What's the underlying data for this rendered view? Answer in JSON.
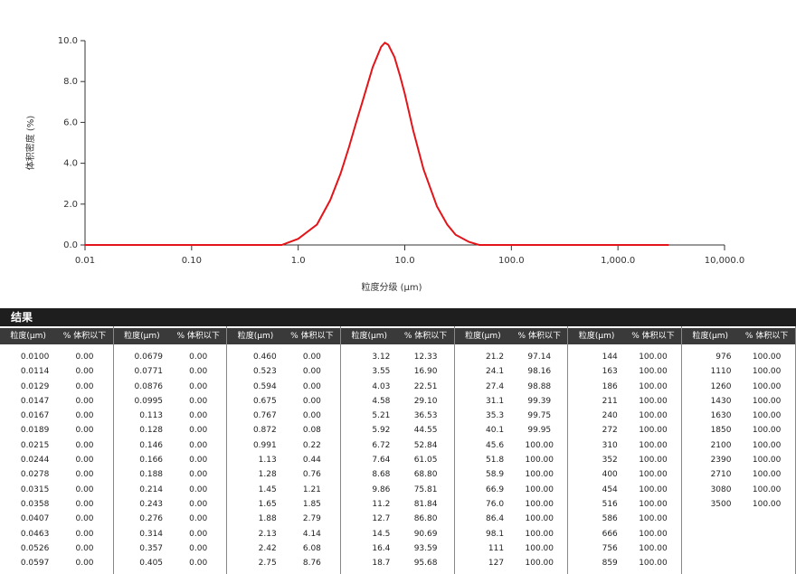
{
  "chart_data": {
    "type": "line",
    "xlabel": "粒度分级 (µm)",
    "ylabel": "体积密度 (%)",
    "log_x": true,
    "xlim": [
      0.01,
      10000
    ],
    "xticks": [
      {
        "value": 0.01,
        "label": "0.01"
      },
      {
        "value": 0.1,
        "label": "0.10"
      },
      {
        "value": 1,
        "label": "1.0"
      },
      {
        "value": 10,
        "label": "10.0"
      },
      {
        "value": 100,
        "label": "100.0"
      },
      {
        "value": 1000,
        "label": "1,000.0"
      },
      {
        "value": 10000,
        "label": "10,000.0"
      }
    ],
    "ylim": [
      0,
      10
    ],
    "yticks": [
      {
        "value": 0,
        "label": "0.0"
      },
      {
        "value": 2,
        "label": "2.0"
      },
      {
        "value": 4,
        "label": "4.0"
      },
      {
        "value": 6,
        "label": "6.0"
      },
      {
        "value": 8,
        "label": "8.0"
      },
      {
        "value": 10,
        "label": "10.0"
      }
    ],
    "series": [
      {
        "color": "#e3151a",
        "x": [
          0.01,
          0.1,
          0.7,
          1.0,
          1.5,
          2.0,
          2.5,
          3.0,
          3.5,
          4.0,
          5.0,
          6.0,
          6.5,
          7.0,
          8.0,
          9.0,
          10,
          12,
          15,
          20,
          25,
          30,
          40,
          50,
          100,
          1000,
          3000
        ],
        "values": [
          0,
          0,
          0,
          0.3,
          1.0,
          2.2,
          3.5,
          4.8,
          6.0,
          7.0,
          8.7,
          9.7,
          9.9,
          9.8,
          9.2,
          8.3,
          7.4,
          5.6,
          3.7,
          1.9,
          1.0,
          0.5,
          0.15,
          0,
          0,
          0,
          0
        ]
      }
    ]
  },
  "table": {
    "title": "结果",
    "headers": [
      "粒度(µm)",
      "% 体积以下"
    ],
    "columns": [
      [
        [
          "0.0100",
          "0.00"
        ],
        [
          "0.0114",
          "0.00"
        ],
        [
          "0.0129",
          "0.00"
        ],
        [
          "0.0147",
          "0.00"
        ],
        [
          "0.0167",
          "0.00"
        ],
        [
          "0.0189",
          "0.00"
        ],
        [
          "0.0215",
          "0.00"
        ],
        [
          "0.0244",
          "0.00"
        ],
        [
          "0.0278",
          "0.00"
        ],
        [
          "0.0315",
          "0.00"
        ],
        [
          "0.0358",
          "0.00"
        ],
        [
          "0.0407",
          "0.00"
        ],
        [
          "0.0463",
          "0.00"
        ],
        [
          "0.0526",
          "0.00"
        ],
        [
          "0.0597",
          "0.00"
        ]
      ],
      [
        [
          "0.0679",
          "0.00"
        ],
        [
          "0.0771",
          "0.00"
        ],
        [
          "0.0876",
          "0.00"
        ],
        [
          "0.0995",
          "0.00"
        ],
        [
          "0.113",
          "0.00"
        ],
        [
          "0.128",
          "0.00"
        ],
        [
          "0.146",
          "0.00"
        ],
        [
          "0.166",
          "0.00"
        ],
        [
          "0.188",
          "0.00"
        ],
        [
          "0.214",
          "0.00"
        ],
        [
          "0.243",
          "0.00"
        ],
        [
          "0.276",
          "0.00"
        ],
        [
          "0.314",
          "0.00"
        ],
        [
          "0.357",
          "0.00"
        ],
        [
          "0.405",
          "0.00"
        ]
      ],
      [
        [
          "0.460",
          "0.00"
        ],
        [
          "0.523",
          "0.00"
        ],
        [
          "0.594",
          "0.00"
        ],
        [
          "0.675",
          "0.00"
        ],
        [
          "0.767",
          "0.00"
        ],
        [
          "0.872",
          "0.08"
        ],
        [
          "0.991",
          "0.22"
        ],
        [
          "1.13",
          "0.44"
        ],
        [
          "1.28",
          "0.76"
        ],
        [
          "1.45",
          "1.21"
        ],
        [
          "1.65",
          "1.85"
        ],
        [
          "1.88",
          "2.79"
        ],
        [
          "2.13",
          "4.14"
        ],
        [
          "2.42",
          "6.08"
        ],
        [
          "2.75",
          "8.76"
        ]
      ],
      [
        [
          "3.12",
          "12.33"
        ],
        [
          "3.55",
          "16.90"
        ],
        [
          "4.03",
          "22.51"
        ],
        [
          "4.58",
          "29.10"
        ],
        [
          "5.21",
          "36.53"
        ],
        [
          "5.92",
          "44.55"
        ],
        [
          "6.72",
          "52.84"
        ],
        [
          "7.64",
          "61.05"
        ],
        [
          "8.68",
          "68.80"
        ],
        [
          "9.86",
          "75.81"
        ],
        [
          "11.2",
          "81.84"
        ],
        [
          "12.7",
          "86.80"
        ],
        [
          "14.5",
          "90.69"
        ],
        [
          "16.4",
          "93.59"
        ],
        [
          "18.7",
          "95.68"
        ]
      ],
      [
        [
          "21.2",
          "97.14"
        ],
        [
          "24.1",
          "98.16"
        ],
        [
          "27.4",
          "98.88"
        ],
        [
          "31.1",
          "99.39"
        ],
        [
          "35.3",
          "99.75"
        ],
        [
          "40.1",
          "99.95"
        ],
        [
          "45.6",
          "100.00"
        ],
        [
          "51.8",
          "100.00"
        ],
        [
          "58.9",
          "100.00"
        ],
        [
          "66.9",
          "100.00"
        ],
        [
          "76.0",
          "100.00"
        ],
        [
          "86.4",
          "100.00"
        ],
        [
          "98.1",
          "100.00"
        ],
        [
          "111",
          "100.00"
        ],
        [
          "127",
          "100.00"
        ]
      ],
      [
        [
          "144",
          "100.00"
        ],
        [
          "163",
          "100.00"
        ],
        [
          "186",
          "100.00"
        ],
        [
          "211",
          "100.00"
        ],
        [
          "240",
          "100.00"
        ],
        [
          "272",
          "100.00"
        ],
        [
          "310",
          "100.00"
        ],
        [
          "352",
          "100.00"
        ],
        [
          "400",
          "100.00"
        ],
        [
          "454",
          "100.00"
        ],
        [
          "516",
          "100.00"
        ],
        [
          "586",
          "100.00"
        ],
        [
          "666",
          "100.00"
        ],
        [
          "756",
          "100.00"
        ],
        [
          "859",
          "100.00"
        ]
      ],
      [
        [
          "976",
          "100.00"
        ],
        [
          "1110",
          "100.00"
        ],
        [
          "1260",
          "100.00"
        ],
        [
          "1430",
          "100.00"
        ],
        [
          "1630",
          "100.00"
        ],
        [
          "1850",
          "100.00"
        ],
        [
          "2100",
          "100.00"
        ],
        [
          "2390",
          "100.00"
        ],
        [
          "2710",
          "100.00"
        ],
        [
          "3080",
          "100.00"
        ],
        [
          "3500",
          "100.00"
        ]
      ]
    ]
  }
}
